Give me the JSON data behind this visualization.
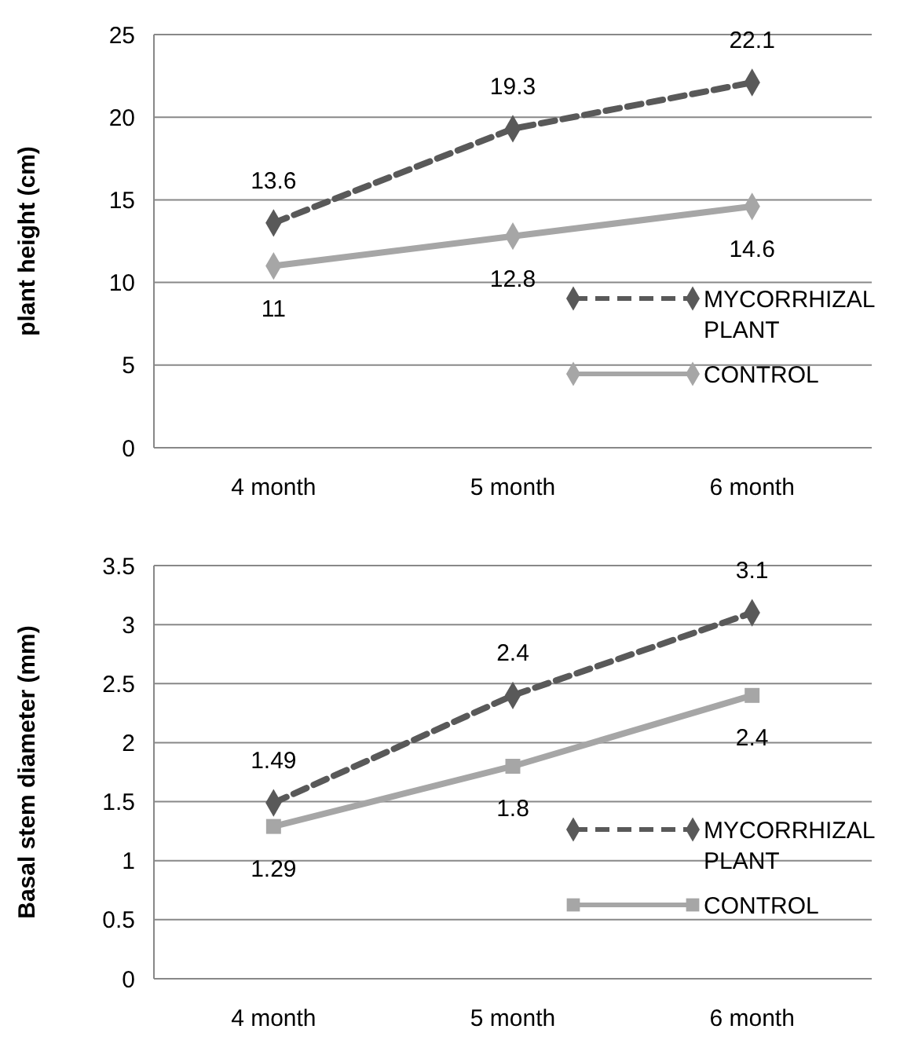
{
  "chart_data": [
    {
      "type": "line",
      "categories": [
        "4 month",
        "5 month",
        "6 month"
      ],
      "ylabel": "plant height (cm)",
      "ylim": [
        0,
        25
      ],
      "yticks": [
        0,
        5,
        10,
        15,
        20,
        25
      ],
      "grid": "y",
      "legend": "bottom right",
      "data_labels": true,
      "series": [
        {
          "name": "MYCORRHIZAL PLANT",
          "color": "#595959",
          "values": [
            13.6,
            19.3,
            22.1
          ],
          "line_style": "dashed",
          "marker": "diamond"
        },
        {
          "name": "CONTROL",
          "color": "#a6a6a6",
          "values": [
            11,
            12.8,
            14.6
          ],
          "line_style": "solid",
          "marker": "diamond"
        }
      ]
    },
    {
      "type": "line",
      "categories": [
        "4 month",
        "5 month",
        "6 month"
      ],
      "ylabel": "Basal stem diameter (mm)",
      "ylim": [
        0,
        3.5
      ],
      "yticks": [
        0,
        0.5,
        1,
        1.5,
        2,
        2.5,
        3,
        3.5
      ],
      "grid": "y",
      "legend": "bottom right",
      "data_labels": true,
      "series": [
        {
          "name": "MYCORRHIZAL PLANT",
          "color": "#595959",
          "values": [
            1.49,
            2.4,
            3.1
          ],
          "line_style": "dashed",
          "marker": "diamond"
        },
        {
          "name": "CONTROL",
          "color": "#a6a6a6",
          "values": [
            1.29,
            1.8,
            2.4
          ],
          "line_style": "solid",
          "marker": "square"
        }
      ]
    }
  ]
}
